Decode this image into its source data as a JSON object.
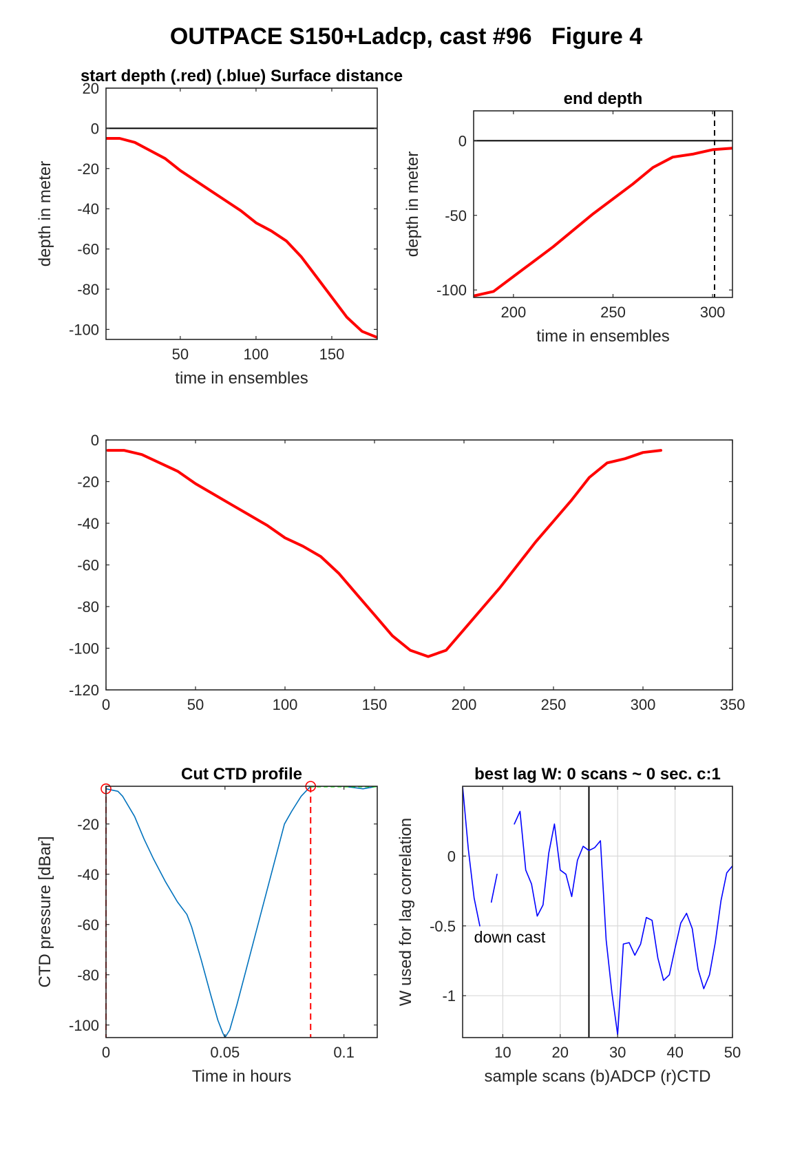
{
  "figure_title": "OUTPACE S150+Ladcp, cast #96   Figure 4",
  "chart_data": [
    {
      "id": "p1",
      "type": "line",
      "title": "start depth (.red) (.blue) Surface distance",
      "xlabel": "time in ensembles",
      "ylabel": "depth in meter",
      "xlim": [
        1,
        180
      ],
      "ylim": [
        -105,
        20
      ],
      "xticks": [
        50,
        100,
        150
      ],
      "yticks": [
        20,
        0,
        -20,
        -40,
        -60,
        -80,
        -100
      ],
      "grid": false,
      "hlines": [
        0
      ],
      "series": [
        {
          "color": "#ff0000",
          "x": [
            1,
            10,
            20,
            30,
            40,
            50,
            60,
            70,
            80,
            90,
            100,
            110,
            120,
            130,
            140,
            150,
            160,
            170,
            180
          ],
          "y": [
            -5,
            -5,
            -7,
            -11,
            -15,
            -21,
            -26,
            -31,
            -36,
            -41,
            -47,
            -51,
            -56,
            -64,
            -74,
            -84,
            -94,
            -101,
            -104
          ]
        }
      ]
    },
    {
      "id": "p2",
      "type": "line",
      "title": "end depth",
      "xlabel": "time in ensembles",
      "ylabel": "depth in meter",
      "xlim": [
        180,
        310
      ],
      "ylim": [
        -105,
        20
      ],
      "xticks": [
        200,
        250,
        300
      ],
      "yticks": [
        0,
        -50,
        -100
      ],
      "grid": false,
      "hlines": [
        0
      ],
      "vlines": [
        301
      ],
      "series": [
        {
          "color": "#ff0000",
          "x": [
            180,
            190,
            200,
            210,
            220,
            230,
            240,
            250,
            260,
            270,
            280,
            290,
            300,
            310
          ],
          "y": [
            -104,
            -101,
            -91,
            -81,
            -71,
            -60,
            -49,
            -39,
            -29,
            -18,
            -11,
            -9,
            -6,
            -5
          ]
        }
      ]
    },
    {
      "id": "p3",
      "type": "line",
      "title": "",
      "xlabel": "",
      "ylabel": "",
      "xlim": [
        0,
        350
      ],
      "ylim": [
        -120,
        0
      ],
      "xticks": [
        0,
        50,
        100,
        150,
        200,
        250,
        300,
        350
      ],
      "yticks": [
        0,
        -20,
        -40,
        -60,
        -80,
        -100,
        -120
      ],
      "grid": false,
      "series": [
        {
          "color": "#ff0000",
          "x": [
            1,
            10,
            20,
            30,
            40,
            50,
            60,
            70,
            80,
            90,
            100,
            110,
            120,
            130,
            140,
            150,
            160,
            170,
            180,
            190,
            200,
            210,
            220,
            230,
            240,
            250,
            260,
            270,
            280,
            290,
            300,
            310
          ],
          "y": [
            -5,
            -5,
            -7,
            -11,
            -15,
            -21,
            -26,
            -31,
            -36,
            -41,
            -47,
            -51,
            -56,
            -64,
            -74,
            -84,
            -94,
            -101,
            -104,
            -101,
            -91,
            -81,
            -71,
            -60,
            -49,
            -39,
            -29,
            -18,
            -11,
            -9,
            -6,
            -5
          ]
        }
      ]
    },
    {
      "id": "p4",
      "type": "line",
      "title": "Cut CTD profile",
      "xlabel": "Time in hours",
      "ylabel": "CTD pressure [dBar]",
      "xlim": [
        0,
        0.114
      ],
      "ylim": [
        -105,
        -5
      ],
      "xticks": [
        0,
        0.05,
        0.1
      ],
      "xticklabels": [
        "0",
        "0.05",
        "0.1"
      ],
      "yticks": [
        -20,
        -40,
        -60,
        -80,
        -100
      ],
      "grid": false,
      "vlines_dashed": [
        0,
        0.086
      ],
      "markers": [
        {
          "x": 0,
          "y": -6
        },
        {
          "x": 0.086,
          "y": -5
        }
      ],
      "series": [
        {
          "color": "#0072bd",
          "x": [
            0,
            0.005,
            0.007,
            0.012,
            0.016,
            0.02,
            0.025,
            0.03,
            0.034,
            0.036,
            0.04,
            0.044,
            0.047,
            0.049,
            0.05,
            0.052,
            0.055,
            0.06,
            0.065,
            0.07,
            0.075,
            0.078,
            0.08,
            0.082,
            0.086
          ],
          "y": [
            -6,
            -7,
            -9,
            -17,
            -26,
            -34,
            -43,
            -51,
            -56,
            -61,
            -74,
            -88,
            -98,
            -103,
            -105,
            -102,
            -92,
            -74,
            -56,
            -38,
            -20,
            -15,
            -12,
            -9,
            -5
          ]
        },
        {
          "color": "#0072bd",
          "x": [
            0.086,
            0.093,
            0.1,
            0.108,
            0.114
          ],
          "y": [
            -5,
            -5,
            -5,
            -6,
            -5
          ]
        },
        {
          "color": "#00ee00",
          "dashed": true,
          "x": [
            0.086,
            0.114
          ],
          "y": [
            -5,
            -5
          ]
        }
      ]
    },
    {
      "id": "p5",
      "type": "line",
      "title": "best lag W: 0 scans ~ 0 sec.  c:1",
      "xlabel": "sample scans (b)ADCP (r)CTD",
      "ylabel": "W used for lag correlation",
      "xlim": [
        3,
        50
      ],
      "ylim": [
        -1.3,
        0.5
      ],
      "xticks": [
        10,
        20,
        30,
        40,
        50
      ],
      "yticks": [
        0,
        -0.5,
        -1
      ],
      "yticklabels": [
        "0",
        "-0.5",
        "-1"
      ],
      "grid": true,
      "vlines": [
        25
      ],
      "annotation": {
        "text": "down cast",
        "x": 5,
        "y": -0.62
      },
      "series": [
        {
          "color": "#0000ff",
          "x": [
            3,
            4,
            5,
            6
          ],
          "y": [
            0.5,
            0.05,
            -0.3,
            -0.5
          ]
        },
        {
          "color": "#0000ff",
          "x": [
            8,
            9
          ],
          "y": [
            -0.33,
            -0.13
          ]
        },
        {
          "color": "#0000ff",
          "x": [
            12,
            13,
            14,
            15,
            16,
            17,
            18,
            19,
            20,
            21,
            22,
            23,
            24,
            25,
            26,
            27,
            28,
            29,
            30,
            31,
            32,
            33,
            34,
            35,
            36,
            37,
            38,
            39,
            40,
            41,
            42,
            43,
            44,
            45,
            46,
            47,
            48,
            49,
            50
          ],
          "y": [
            0.23,
            0.32,
            -0.1,
            -0.2,
            -0.43,
            -0.35,
            0.02,
            0.23,
            -0.1,
            -0.13,
            -0.29,
            -0.03,
            0.07,
            0.04,
            0.06,
            0.11,
            -0.6,
            -0.98,
            -1.28,
            -0.63,
            -0.62,
            -0.71,
            -0.63,
            -0.44,
            -0.46,
            -0.73,
            -0.89,
            -0.85,
            -0.66,
            -0.48,
            -0.41,
            -0.52,
            -0.81,
            -0.95,
            -0.85,
            -0.62,
            -0.32,
            -0.12,
            -0.07
          ]
        }
      ]
    }
  ]
}
